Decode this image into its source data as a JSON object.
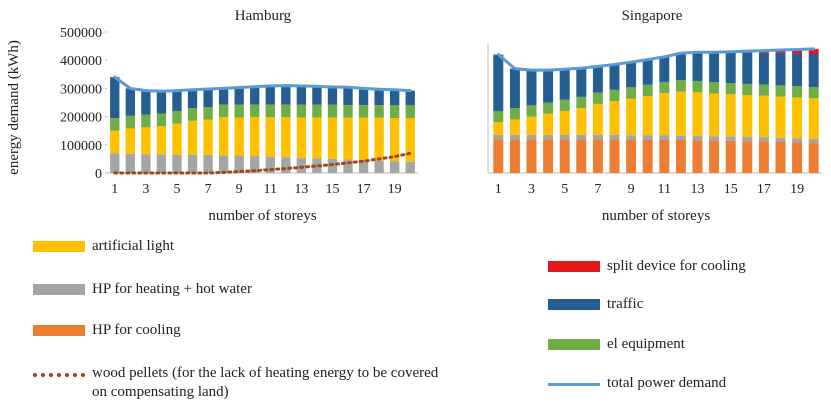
{
  "chart_data": [
    {
      "type": "bar",
      "title": "Hamburg",
      "ylabel": "energy demand (kWh)",
      "xlabel": "number of storeys",
      "categories": [
        1,
        null,
        3,
        null,
        5,
        null,
        7,
        null,
        9,
        null,
        11,
        null,
        13,
        null,
        15,
        null,
        17,
        null,
        19,
        null
      ],
      "ylim": [
        0,
        500000
      ],
      "yticks": [
        0,
        100000,
        200000,
        300000,
        400000,
        500000
      ],
      "series": [
        {
          "name": "HP for heating + hot water",
          "color": "#a5a5a5",
          "values": [
            70000,
            68000,
            67000,
            66000,
            65000,
            65000,
            64000,
            63000,
            62000,
            60000,
            58000,
            56000,
            54000,
            52000,
            50000,
            48000,
            46000,
            44000,
            42000,
            40000
          ]
        },
        {
          "name": "artificial light",
          "color": "#ffc000",
          "values": [
            80000,
            90000,
            95000,
            100000,
            110000,
            120000,
            125000,
            135000,
            135000,
            138000,
            140000,
            142000,
            143000,
            145000,
            147000,
            148000,
            150000,
            152000,
            153000,
            155000
          ]
        },
        {
          "name": "el equipment",
          "color": "#70ad47",
          "values": [
            45000,
            45000,
            45000,
            45000,
            45000,
            45000,
            45000,
            45000,
            45000,
            45000,
            45000,
            45000,
            45000,
            45000,
            45000,
            45000,
            45000,
            45000,
            45000,
            45000
          ]
        },
        {
          "name": "traffic",
          "color": "#255e91",
          "values": [
            145000,
            97000,
            85000,
            79000,
            72000,
            65000,
            64000,
            57000,
            61000,
            63000,
            66000,
            67000,
            67000,
            65000,
            63000,
            63000,
            59000,
            56000,
            55000,
            52000
          ]
        },
        {
          "name": "total power demand",
          "type": "line",
          "color": "#5b9bd5",
          "values": [
            340000,
            300000,
            292000,
            290000,
            292000,
            295000,
            298000,
            300000,
            303000,
            306000,
            309000,
            310000,
            309000,
            307000,
            305000,
            304000,
            300000,
            297000,
            295000,
            292000
          ]
        },
        {
          "name": "wood pellets (for the lack of heating energy to be covered on compensating land)",
          "type": "line",
          "dash": "dotted",
          "color": "#a0461c",
          "values": [
            0,
            0,
            0,
            0,
            0,
            0,
            0,
            2000,
            5000,
            8000,
            12000,
            16000,
            20000,
            25000,
            30000,
            36000,
            42000,
            50000,
            58000,
            70000
          ]
        }
      ]
    },
    {
      "type": "bar",
      "title": "Singapore",
      "xlabel": "number of storeys",
      "categories": [
        1,
        null,
        3,
        null,
        5,
        null,
        7,
        null,
        9,
        null,
        11,
        null,
        13,
        null,
        15,
        null,
        17,
        null,
        19,
        null
      ],
      "ylim": [
        0,
        500000
      ],
      "series": [
        {
          "name": "HP for cooling",
          "color": "#ed7d31",
          "values": [
            120000,
            120000,
            120000,
            120000,
            120000,
            120000,
            120000,
            120000,
            119000,
            118000,
            118000,
            117000,
            116000,
            115000,
            114000,
            113000,
            112000,
            110000,
            108000,
            106000
          ]
        },
        {
          "name": "HP for heating + hot water",
          "color": "#a5a5a5",
          "values": [
            15000,
            15000,
            15000,
            15000,
            15000,
            15000,
            15000,
            15000,
            15000,
            15000,
            15000,
            15000,
            15000,
            15000,
            15000,
            15000,
            15000,
            15000,
            15000,
            15000
          ]
        },
        {
          "name": "artificial light",
          "color": "#ffc000",
          "values": [
            45000,
            55000,
            65000,
            75000,
            85000,
            95000,
            110000,
            120000,
            130000,
            140000,
            150000,
            157000,
            155000,
            152000,
            150000,
            148000,
            147000,
            146000,
            145000,
            144000
          ]
        },
        {
          "name": "el equipment",
          "color": "#70ad47",
          "values": [
            40000,
            40000,
            40000,
            40000,
            40000,
            40000,
            40000,
            40000,
            40000,
            40000,
            40000,
            40000,
            40000,
            40000,
            40000,
            40000,
            40000,
            40000,
            40000,
            40000
          ]
        },
        {
          "name": "traffic",
          "color": "#255e91",
          "values": [
            200000,
            140000,
            125000,
            115000,
            108000,
            102000,
            93000,
            90000,
            89000,
            89000,
            89000,
            96000,
            102000,
            106000,
            109000,
            111000,
            112000,
            115000,
            116000,
            117000
          ]
        },
        {
          "name": "split device for cooling",
          "color": "#e31a1c",
          "values": [
            0,
            0,
            0,
            0,
            0,
            0,
            0,
            0,
            0,
            0,
            0,
            0,
            0,
            0,
            2000,
            5000,
            8000,
            10000,
            14000,
            18000
          ]
        },
        {
          "name": "total power demand",
          "type": "line",
          "color": "#5b9bd5",
          "values": [
            420000,
            370000,
            365000,
            365000,
            368000,
            372000,
            378000,
            385000,
            393000,
            402000,
            412000,
            425000,
            428000,
            428000,
            430000,
            432000,
            434000,
            436000,
            438000,
            440000
          ]
        }
      ]
    }
  ]
}
